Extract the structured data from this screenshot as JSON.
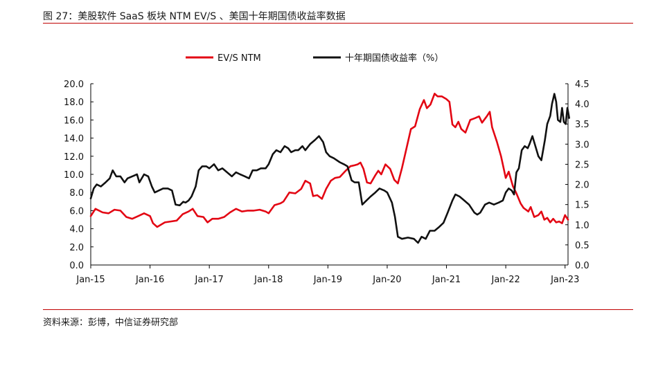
{
  "figure": {
    "title": "图 27：美股软件 SaaS 板块 NTM EV/S 、美国十年期国债收益率数据",
    "source": "资料来源：彭博，中信证券研究部"
  },
  "colors": {
    "accent": "#c00000",
    "series_red": "#e30613",
    "series_black": "#111111"
  },
  "chart_data": {
    "type": "line",
    "legend_position": "top-center",
    "grid": false,
    "x_ticks": [
      "Jan-15",
      "Jan-16",
      "Jan-17",
      "Jan-18",
      "Jan-19",
      "Jan-20",
      "Jan-21",
      "Jan-22",
      "Jan-23"
    ],
    "x_range": [
      2015.0,
      2023.05
    ],
    "y_left": {
      "ticks": [
        "0.0",
        "2.0",
        "4.0",
        "6.0",
        "8.0",
        "10.0",
        "12.0",
        "14.0",
        "16.0",
        "18.0",
        "20.0"
      ],
      "range": [
        0,
        20
      ]
    },
    "y_right": {
      "ticks": [
        "0.0",
        "0.5",
        "1.0",
        "1.5",
        "2.0",
        "2.5",
        "3.0",
        "3.5",
        "4.0",
        "4.5"
      ],
      "range": [
        0,
        4.5
      ]
    },
    "series": [
      {
        "name": "EV/S NTM",
        "axis": "left",
        "color": "#e30613",
        "points": [
          [
            2015.0,
            5.4
          ],
          [
            2015.08,
            6.2
          ],
          [
            2015.2,
            5.8
          ],
          [
            2015.3,
            5.7
          ],
          [
            2015.4,
            6.1
          ],
          [
            2015.5,
            6.0
          ],
          [
            2015.6,
            5.3
          ],
          [
            2015.7,
            5.1
          ],
          [
            2015.8,
            5.4
          ],
          [
            2015.9,
            5.7
          ],
          [
            2016.0,
            5.4
          ],
          [
            2016.05,
            4.6
          ],
          [
            2016.12,
            4.2
          ],
          [
            2016.25,
            4.7
          ],
          [
            2016.35,
            4.8
          ],
          [
            2016.45,
            4.9
          ],
          [
            2016.55,
            5.6
          ],
          [
            2016.65,
            5.9
          ],
          [
            2016.72,
            6.2
          ],
          [
            2016.8,
            5.4
          ],
          [
            2016.9,
            5.3
          ],
          [
            2016.97,
            4.7
          ],
          [
            2017.05,
            5.1
          ],
          [
            2017.15,
            5.1
          ],
          [
            2017.25,
            5.3
          ],
          [
            2017.35,
            5.8
          ],
          [
            2017.45,
            6.2
          ],
          [
            2017.55,
            5.9
          ],
          [
            2017.65,
            6.0
          ],
          [
            2017.75,
            6.0
          ],
          [
            2017.85,
            6.1
          ],
          [
            2017.95,
            5.9
          ],
          [
            2018.0,
            5.7
          ],
          [
            2018.1,
            6.6
          ],
          [
            2018.2,
            6.8
          ],
          [
            2018.25,
            7.0
          ],
          [
            2018.35,
            8.0
          ],
          [
            2018.45,
            7.9
          ],
          [
            2018.55,
            8.4
          ],
          [
            2018.62,
            9.3
          ],
          [
            2018.7,
            9.0
          ],
          [
            2018.75,
            7.6
          ],
          [
            2018.82,
            7.7
          ],
          [
            2018.9,
            7.3
          ],
          [
            2018.97,
            8.4
          ],
          [
            2019.05,
            9.3
          ],
          [
            2019.12,
            9.6
          ],
          [
            2019.2,
            9.7
          ],
          [
            2019.3,
            10.4
          ],
          [
            2019.38,
            10.9
          ],
          [
            2019.45,
            11.0
          ],
          [
            2019.5,
            11.1
          ],
          [
            2019.55,
            11.3
          ],
          [
            2019.6,
            10.6
          ],
          [
            2019.66,
            9.1
          ],
          [
            2019.72,
            9.0
          ],
          [
            2019.8,
            9.9
          ],
          [
            2019.85,
            10.4
          ],
          [
            2019.9,
            10.0
          ],
          [
            2019.97,
            11.1
          ],
          [
            2020.05,
            10.6
          ],
          [
            2020.12,
            9.4
          ],
          [
            2020.18,
            9.0
          ],
          [
            2020.25,
            10.7
          ],
          [
            2020.33,
            13.0
          ],
          [
            2020.4,
            15.0
          ],
          [
            2020.47,
            15.3
          ],
          [
            2020.55,
            17.2
          ],
          [
            2020.62,
            18.2
          ],
          [
            2020.67,
            17.3
          ],
          [
            2020.73,
            17.7
          ],
          [
            2020.8,
            18.9
          ],
          [
            2020.85,
            18.6
          ],
          [
            2020.92,
            18.6
          ],
          [
            2021.0,
            18.3
          ],
          [
            2021.05,
            18.0
          ],
          [
            2021.1,
            15.5
          ],
          [
            2021.15,
            15.2
          ],
          [
            2021.2,
            15.8
          ],
          [
            2021.25,
            15.0
          ],
          [
            2021.32,
            14.6
          ],
          [
            2021.4,
            16.0
          ],
          [
            2021.48,
            16.2
          ],
          [
            2021.55,
            16.4
          ],
          [
            2021.6,
            15.7
          ],
          [
            2021.68,
            16.4
          ],
          [
            2021.73,
            16.9
          ],
          [
            2021.77,
            15.2
          ],
          [
            2021.85,
            13.6
          ],
          [
            2021.92,
            12.0
          ],
          [
            2022.0,
            9.6
          ],
          [
            2022.05,
            10.3
          ],
          [
            2022.12,
            8.7
          ],
          [
            2022.18,
            7.9
          ],
          [
            2022.25,
            6.8
          ],
          [
            2022.3,
            6.3
          ],
          [
            2022.38,
            5.9
          ],
          [
            2022.42,
            6.4
          ],
          [
            2022.48,
            5.3
          ],
          [
            2022.55,
            5.5
          ],
          [
            2022.6,
            5.9
          ],
          [
            2022.65,
            5.0
          ],
          [
            2022.7,
            5.2
          ],
          [
            2022.75,
            4.7
          ],
          [
            2022.8,
            5.1
          ],
          [
            2022.85,
            4.7
          ],
          [
            2022.9,
            4.8
          ],
          [
            2022.95,
            4.6
          ],
          [
            2023.0,
            5.5
          ],
          [
            2023.05,
            5.0
          ]
        ]
      },
      {
        "name": "十年期国债收益率（%）",
        "axis": "right",
        "color": "#111111",
        "points": [
          [
            2015.0,
            1.65
          ],
          [
            2015.05,
            1.9
          ],
          [
            2015.1,
            2.0
          ],
          [
            2015.17,
            1.95
          ],
          [
            2015.25,
            2.05
          ],
          [
            2015.32,
            2.15
          ],
          [
            2015.37,
            2.35
          ],
          [
            2015.43,
            2.2
          ],
          [
            2015.5,
            2.2
          ],
          [
            2015.57,
            2.05
          ],
          [
            2015.62,
            2.15
          ],
          [
            2015.7,
            2.2
          ],
          [
            2015.78,
            2.25
          ],
          [
            2015.82,
            2.05
          ],
          [
            2015.9,
            2.25
          ],
          [
            2015.97,
            2.2
          ],
          [
            2016.03,
            1.95
          ],
          [
            2016.08,
            1.8
          ],
          [
            2016.15,
            1.85
          ],
          [
            2016.22,
            1.9
          ],
          [
            2016.3,
            1.9
          ],
          [
            2016.37,
            1.85
          ],
          [
            2016.43,
            1.5
          ],
          [
            2016.5,
            1.48
          ],
          [
            2016.56,
            1.57
          ],
          [
            2016.6,
            1.55
          ],
          [
            2016.65,
            1.6
          ],
          [
            2016.7,
            1.7
          ],
          [
            2016.77,
            1.95
          ],
          [
            2016.82,
            2.35
          ],
          [
            2016.88,
            2.45
          ],
          [
            2016.95,
            2.45
          ],
          [
            2017.0,
            2.4
          ],
          [
            2017.08,
            2.5
          ],
          [
            2017.15,
            2.35
          ],
          [
            2017.22,
            2.4
          ],
          [
            2017.3,
            2.3
          ],
          [
            2017.38,
            2.2
          ],
          [
            2017.45,
            2.3
          ],
          [
            2017.52,
            2.25
          ],
          [
            2017.6,
            2.2
          ],
          [
            2017.67,
            2.15
          ],
          [
            2017.73,
            2.35
          ],
          [
            2017.8,
            2.35
          ],
          [
            2017.87,
            2.4
          ],
          [
            2017.95,
            2.4
          ],
          [
            2018.0,
            2.5
          ],
          [
            2018.07,
            2.75
          ],
          [
            2018.13,
            2.85
          ],
          [
            2018.2,
            2.8
          ],
          [
            2018.27,
            2.95
          ],
          [
            2018.33,
            2.9
          ],
          [
            2018.38,
            2.8
          ],
          [
            2018.45,
            2.85
          ],
          [
            2018.5,
            2.85
          ],
          [
            2018.57,
            2.95
          ],
          [
            2018.62,
            2.85
          ],
          [
            2018.7,
            3.0
          ],
          [
            2018.78,
            3.1
          ],
          [
            2018.85,
            3.2
          ],
          [
            2018.92,
            3.05
          ],
          [
            2018.97,
            2.8
          ],
          [
            2019.03,
            2.7
          ],
          [
            2019.1,
            2.65
          ],
          [
            2019.2,
            2.55
          ],
          [
            2019.27,
            2.5
          ],
          [
            2019.33,
            2.45
          ],
          [
            2019.4,
            2.1
          ],
          [
            2019.45,
            2.05
          ],
          [
            2019.52,
            2.05
          ],
          [
            2019.58,
            1.5
          ],
          [
            2019.65,
            1.6
          ],
          [
            2019.72,
            1.7
          ],
          [
            2019.8,
            1.8
          ],
          [
            2019.87,
            1.9
          ],
          [
            2019.95,
            1.85
          ],
          [
            2020.0,
            1.8
          ],
          [
            2020.08,
            1.55
          ],
          [
            2020.13,
            1.2
          ],
          [
            2020.18,
            0.7
          ],
          [
            2020.25,
            0.65
          ],
          [
            2020.35,
            0.68
          ],
          [
            2020.45,
            0.65
          ],
          [
            2020.52,
            0.55
          ],
          [
            2020.58,
            0.7
          ],
          [
            2020.65,
            0.65
          ],
          [
            2020.72,
            0.85
          ],
          [
            2020.8,
            0.85
          ],
          [
            2020.88,
            0.95
          ],
          [
            2020.95,
            1.05
          ],
          [
            2021.02,
            1.3
          ],
          [
            2021.1,
            1.6
          ],
          [
            2021.15,
            1.75
          ],
          [
            2021.22,
            1.7
          ],
          [
            2021.3,
            1.6
          ],
          [
            2021.38,
            1.5
          ],
          [
            2021.47,
            1.3
          ],
          [
            2021.52,
            1.25
          ],
          [
            2021.57,
            1.3
          ],
          [
            2021.65,
            1.5
          ],
          [
            2021.72,
            1.55
          ],
          [
            2021.8,
            1.5
          ],
          [
            2021.88,
            1.55
          ],
          [
            2021.95,
            1.6
          ],
          [
            2022.0,
            1.8
          ],
          [
            2022.05,
            1.9
          ],
          [
            2022.1,
            1.85
          ],
          [
            2022.14,
            1.75
          ],
          [
            2022.18,
            2.3
          ],
          [
            2022.22,
            2.4
          ],
          [
            2022.27,
            2.85
          ],
          [
            2022.32,
            2.95
          ],
          [
            2022.37,
            2.9
          ],
          [
            2022.4,
            3.0
          ],
          [
            2022.45,
            3.2
          ],
          [
            2022.5,
            2.95
          ],
          [
            2022.55,
            2.7
          ],
          [
            2022.6,
            2.6
          ],
          [
            2022.66,
            3.1
          ],
          [
            2022.7,
            3.5
          ],
          [
            2022.75,
            3.7
          ],
          [
            2022.78,
            4.0
          ],
          [
            2022.82,
            4.25
          ],
          [
            2022.85,
            4.05
          ],
          [
            2022.88,
            3.6
          ],
          [
            2022.92,
            3.55
          ],
          [
            2022.95,
            3.9
          ],
          [
            2022.98,
            3.55
          ],
          [
            2023.01,
            3.5
          ],
          [
            2023.04,
            3.9
          ],
          [
            2023.07,
            3.65
          ]
        ]
      }
    ]
  }
}
